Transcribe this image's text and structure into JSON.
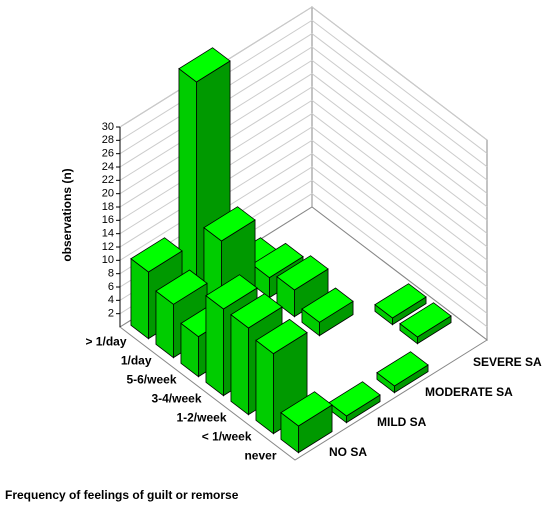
{
  "chart_data": {
    "type": "bar3d",
    "categories": [
      "> 1/day",
      "1/day",
      "5-6/week",
      "3-4/week",
      "1-2/week",
      "< 1/week",
      "never"
    ],
    "series": [
      {
        "name": "NO SA",
        "color": "#00cc00",
        "values": [
          10,
          8,
          6,
          13,
          13,
          12,
          4
        ]
      },
      {
        "name": "MILD SA",
        "color": "#00cc00",
        "values": [
          34,
          13,
          0,
          0,
          0,
          0,
          1
        ]
      },
      {
        "name": "MODERATE SA",
        "color": "#00cc00",
        "values": [
          1,
          3,
          4,
          2,
          0,
          0,
          1
        ]
      },
      {
        "name": "SEVERE SA",
        "color": "#00cc00",
        "values": [
          0,
          0,
          0,
          0,
          1,
          1,
          0
        ]
      }
    ],
    "x_label": "Frequency of feelings of guilt or remorse",
    "y_label": "observations (n)",
    "ylim": [
      0,
      30
    ],
    "yticks": [
      2,
      4,
      6,
      8,
      10,
      12,
      14,
      16,
      18,
      20,
      22,
      24,
      26,
      28,
      30
    ],
    "grid": true
  }
}
